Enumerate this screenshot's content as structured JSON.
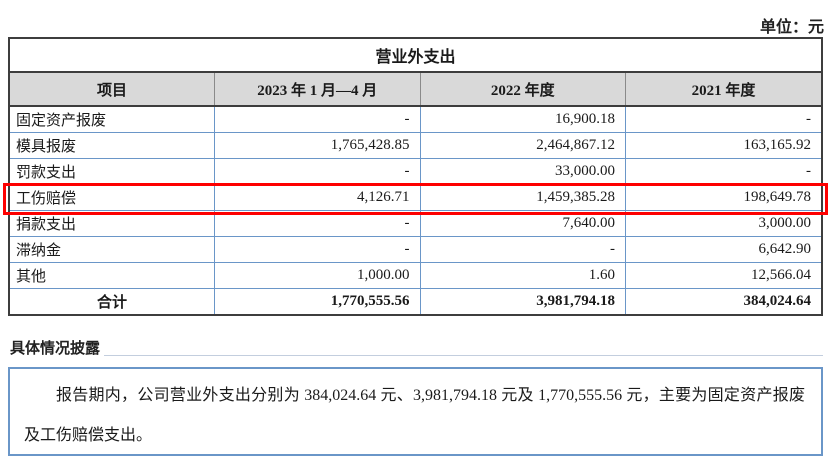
{
  "unit_label": "单位：元",
  "table": {
    "title": "营业外支出",
    "columns": [
      "项目",
      "2023 年 1 月—4 月",
      "2022 年度",
      "2021 年度"
    ],
    "rows": [
      {
        "cells": [
          "固定资产报废",
          "-",
          "16,900.18",
          "-"
        ],
        "highlighted": false,
        "is_total": false
      },
      {
        "cells": [
          "模具报废",
          "1,765,428.85",
          "2,464,867.12",
          "163,165.92"
        ],
        "highlighted": false,
        "is_total": false
      },
      {
        "cells": [
          "罚款支出",
          "-",
          "33,000.00",
          "-"
        ],
        "highlighted": false,
        "is_total": false
      },
      {
        "cells": [
          "工伤赔偿",
          "4,126.71",
          "1,459,385.28",
          "198,649.78"
        ],
        "highlighted": true,
        "is_total": false
      },
      {
        "cells": [
          "捐款支出",
          "-",
          "7,640.00",
          "3,000.00"
        ],
        "highlighted": false,
        "is_total": false
      },
      {
        "cells": [
          "滞纳金",
          "-",
          "-",
          "6,642.90"
        ],
        "highlighted": false,
        "is_total": false
      },
      {
        "cells": [
          "其他",
          "1,000.00",
          "1.60",
          "12,566.04"
        ],
        "highlighted": false,
        "is_total": false
      },
      {
        "cells": [
          "合计",
          "1,770,555.56",
          "3,981,794.18",
          "384,024.64"
        ],
        "highlighted": false,
        "is_total": true
      }
    ]
  },
  "disclosure": {
    "heading": "具体情况披露",
    "text": "报告期内，公司营业外支出分别为 384,024.64 元、3,981,794.18 元及 1,770,555.56 元，主要为固定资产报废及工伤赔偿支出。"
  },
  "colors": {
    "header_bg": "#d9d9d9",
    "inner_border": "#6a96c8",
    "outer_border": "#3d3d3d",
    "highlight_border": "#fe0000",
    "disclosure_border": "#6a96c8"
  }
}
